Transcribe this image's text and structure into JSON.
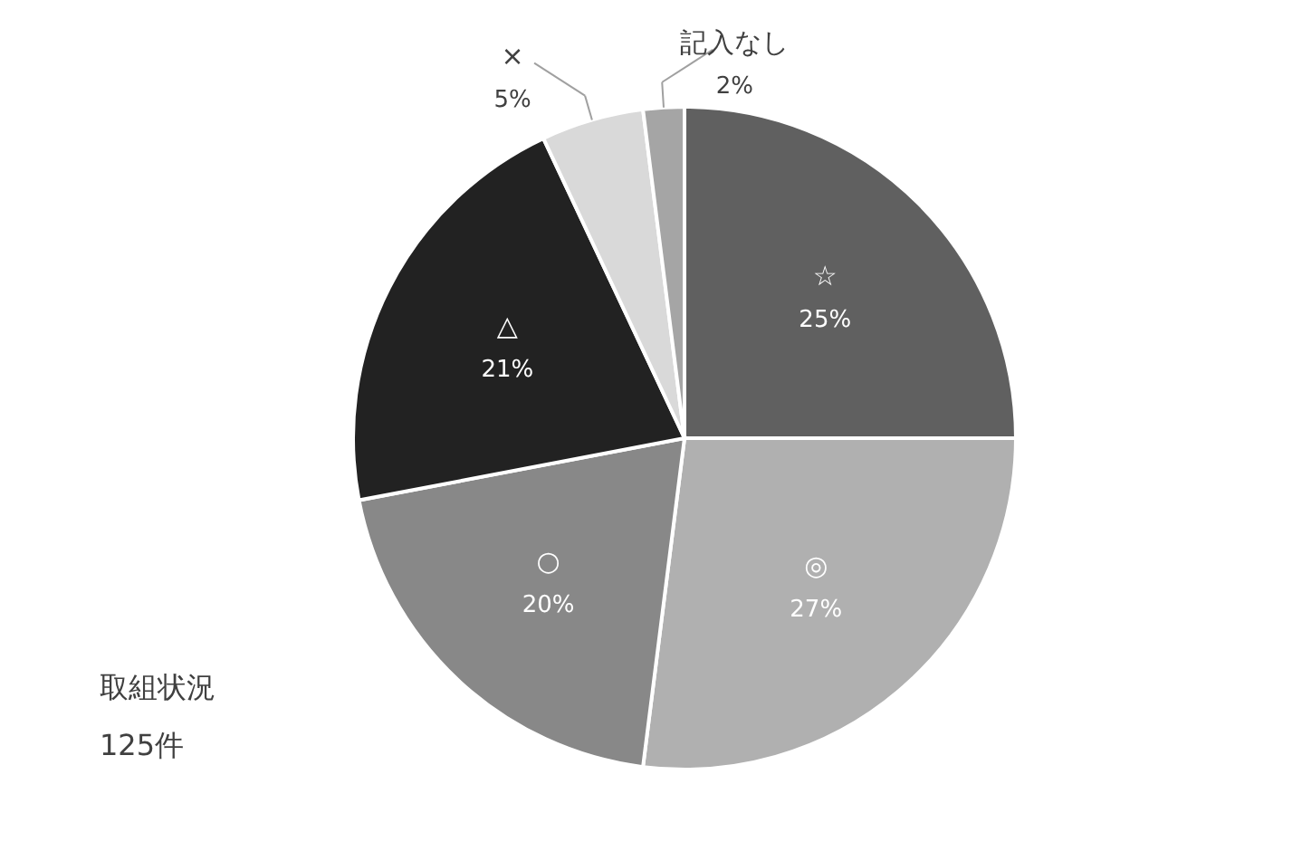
{
  "chart_data": {
    "type": "pie",
    "categories": [
      "☆",
      "◎",
      "○",
      "△",
      "×",
      "記入なし"
    ],
    "values": [
      25,
      27,
      20,
      21,
      5,
      2
    ],
    "value_labels": [
      "25%",
      "27%",
      "20%",
      "21%",
      "5%",
      "2%"
    ],
    "colors": [
      "#606060",
      "#b0b0b0",
      "#888888",
      "#222222",
      "#d9d9d9",
      "#a5a5a5"
    ],
    "annotations": [
      "取組状況",
      "125件"
    ]
  }
}
